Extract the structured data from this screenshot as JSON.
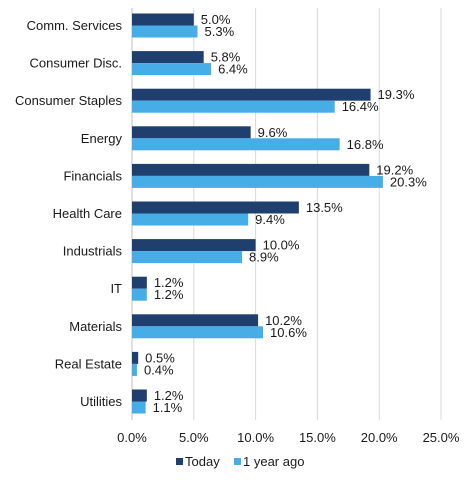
{
  "chart_data": {
    "type": "bar",
    "orientation": "horizontal",
    "categories": [
      "Comm. Services",
      "Consumer Disc.",
      "Consumer Staples",
      "Energy",
      "Financials",
      "Health Care",
      "Industrials",
      "IT",
      "Materials",
      "Real Estate",
      "Utilities"
    ],
    "series": [
      {
        "name": "Today",
        "color": "#1f3f6e",
        "values": [
          5.0,
          5.8,
          19.3,
          9.6,
          19.2,
          13.5,
          10.0,
          1.2,
          10.2,
          0.5,
          1.2
        ]
      },
      {
        "name": "1 year ago",
        "color": "#46ade6",
        "values": [
          5.3,
          6.4,
          16.4,
          16.8,
          20.3,
          9.4,
          8.9,
          1.2,
          10.6,
          0.4,
          1.1
        ]
      }
    ],
    "value_labels": {
      "Today": [
        "5.0%",
        "5.8%",
        "19.3%",
        "9.6%",
        "19.2%",
        "13.5%",
        "10.0%",
        "1.2%",
        "10.2%",
        "0.5%",
        "1.2%"
      ],
      "1 year ago": [
        "5.3%",
        "6.4%",
        "16.4%",
        "16.8%",
        "20.3%",
        "9.4%",
        "8.9%",
        "1.2%",
        "10.6%",
        "0.4%",
        "1.1%"
      ]
    },
    "x_ticks": [
      "0.0%",
      "5.0%",
      "10.0%",
      "15.0%",
      "20.0%",
      "25.0%"
    ],
    "xlim": [
      0,
      25
    ],
    "grid": "vertical",
    "legend": "bottom",
    "title": "",
    "xlabel": "",
    "ylabel": ""
  }
}
